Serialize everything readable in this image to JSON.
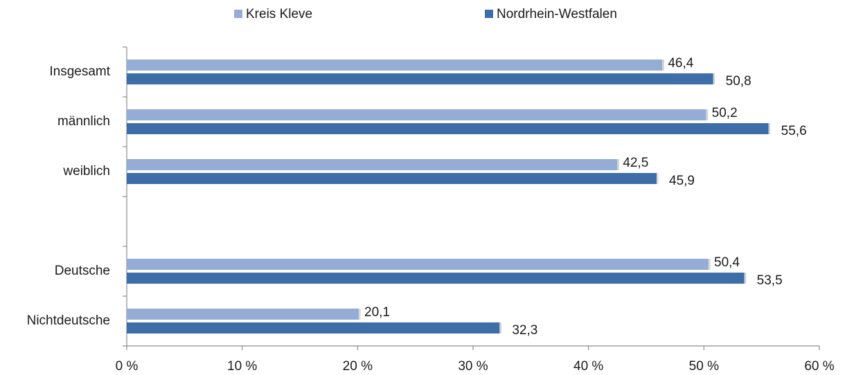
{
  "chart_data": {
    "type": "hbar",
    "categories": [
      "Insgesamt",
      "männlich",
      "weiblich",
      null,
      "Deutsche",
      "Nichtdeutsche"
    ],
    "series": [
      {
        "name": "Kreis Kleve",
        "color": "#95acd4",
        "values": [
          46.4,
          50.2,
          42.5,
          null,
          50.4,
          20.1
        ],
        "value_labels": [
          "46,4",
          "50,2",
          "42,5",
          null,
          "50,4",
          "20,1"
        ]
      },
      {
        "name": "Nordrhein-Westfalen",
        "color": "#3d6ea8",
        "values": [
          50.8,
          55.6,
          45.9,
          null,
          53.5,
          32.3
        ],
        "value_labels": [
          "50,8",
          "55,6",
          "45,9",
          null,
          "53,5",
          "32,3"
        ]
      }
    ],
    "xlim": [
      0,
      60
    ],
    "xticks": [
      {
        "value": 0,
        "label": "0 %"
      },
      {
        "value": 10,
        "label": "10 %"
      },
      {
        "value": 20,
        "label": "20 %"
      },
      {
        "value": 30,
        "label": "30 %"
      },
      {
        "value": 40,
        "label": "40 %"
      },
      {
        "value": 50,
        "label": "50 %"
      },
      {
        "value": 60,
        "label": "60 %"
      }
    ],
    "legend": "top"
  }
}
